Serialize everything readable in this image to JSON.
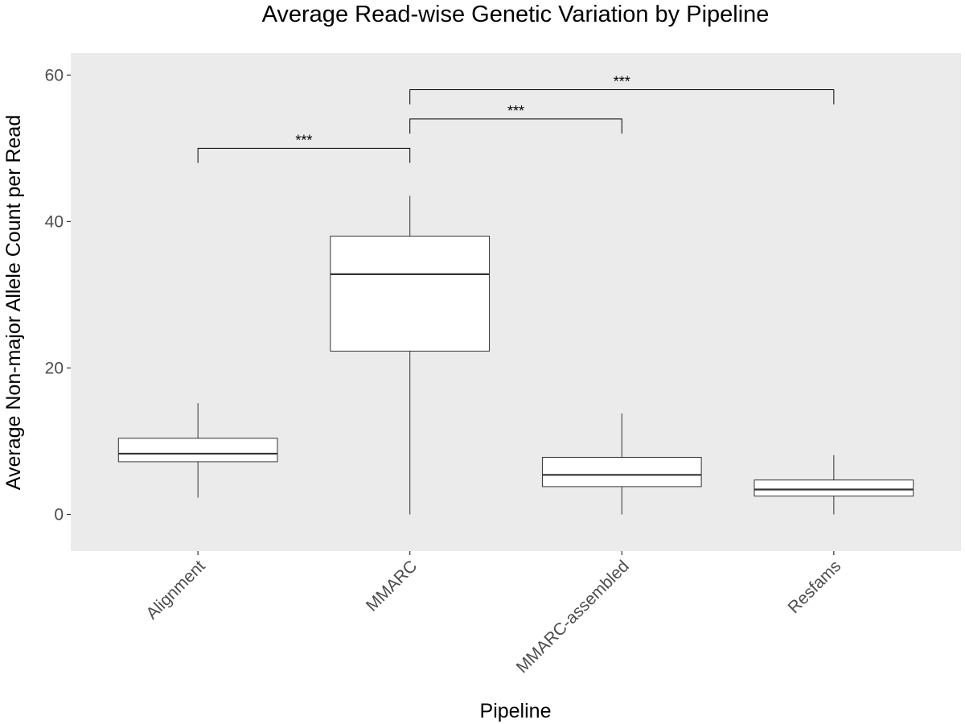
{
  "colors": {
    "panel_background": "#ebebeb",
    "box_fill": "#ffffff",
    "box_stroke": "#333333",
    "text_dark": "#000000",
    "tick_text": "#4d4d4d"
  },
  "chart_data": {
    "type": "boxplot",
    "title": "Average Read-wise Genetic Variation by Pipeline",
    "xlabel": "Pipeline",
    "ylabel": "Average Non-major Allele Count per Read",
    "ylim": [
      -5,
      63
    ],
    "yticks": [
      0,
      20,
      40,
      60
    ],
    "grid": false,
    "legend": "none",
    "categories": [
      "Alignment",
      "MMARC",
      "MMARC-assembled",
      "Resfams"
    ],
    "boxes": [
      {
        "category": "Alignment",
        "whisker_low": 2.3,
        "q1": 7.2,
        "median": 8.3,
        "q3": 10.4,
        "whisker_high": 15.2
      },
      {
        "category": "MMARC",
        "whisker_low": 0,
        "q1": 22.3,
        "median": 32.8,
        "q3": 38.0,
        "whisker_high": 43.5
      },
      {
        "category": "MMARC-assembled",
        "whisker_low": 0,
        "q1": 3.8,
        "median": 5.4,
        "q3": 7.8,
        "whisker_high": 13.8
      },
      {
        "category": "Resfams",
        "whisker_low": 0,
        "q1": 2.5,
        "median": 3.4,
        "q3": 4.7,
        "whisker_high": 8.1
      }
    ],
    "significance": [
      {
        "from": "Alignment",
        "to": "MMARC",
        "y": 50,
        "tip_y": 48,
        "label": "***"
      },
      {
        "from": "MMARC",
        "to": "MMARC-assembled",
        "y": 54,
        "tip_y": 52,
        "label": "***"
      },
      {
        "from": "MMARC",
        "to": "Resfams",
        "y": 58,
        "tip_y": 56,
        "label": "***"
      }
    ]
  }
}
